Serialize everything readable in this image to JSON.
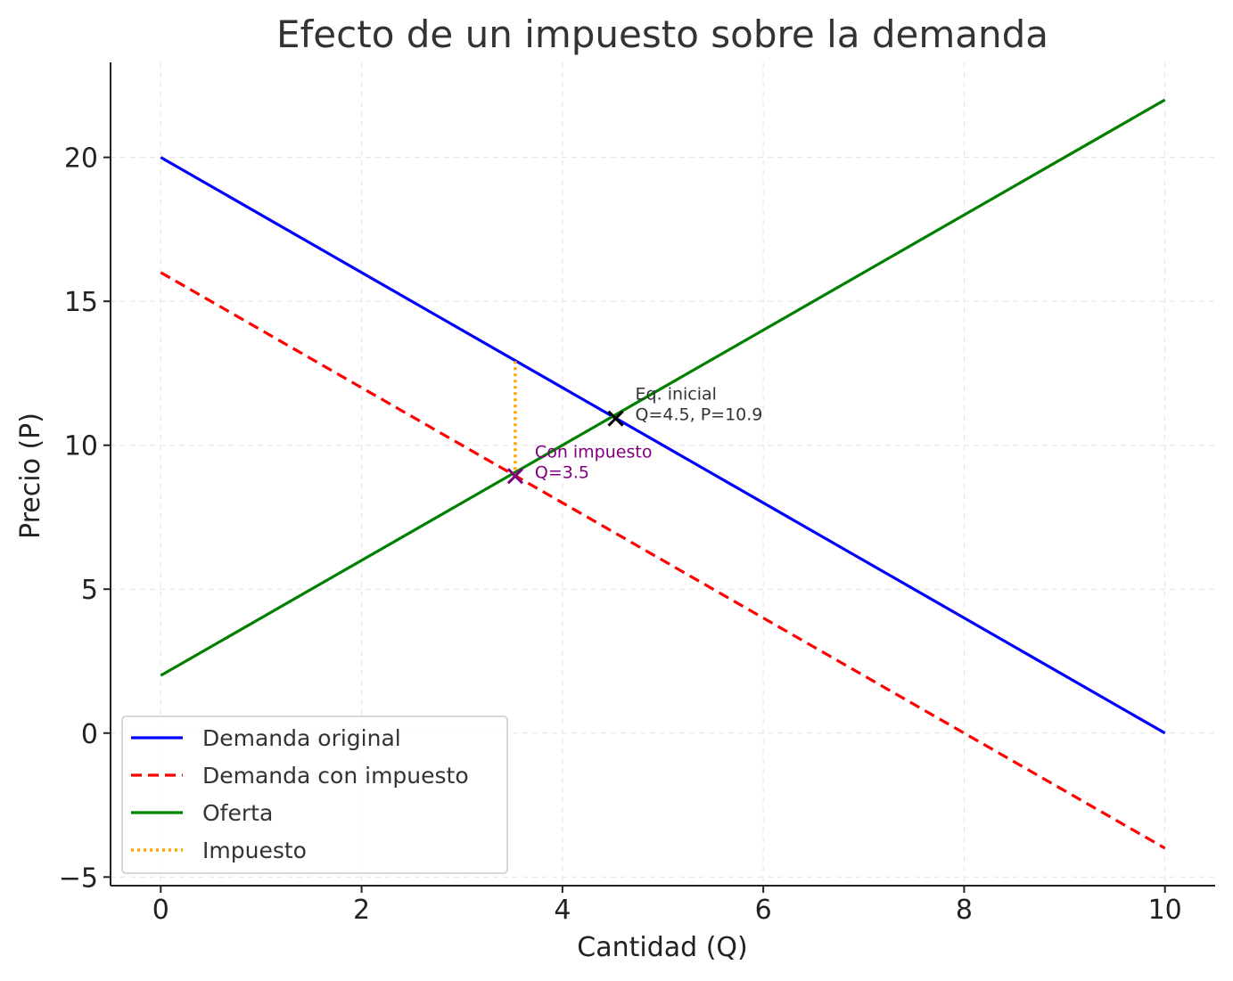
{
  "chart_data": {
    "type": "line",
    "title": "Efecto de un impuesto sobre la demanda",
    "xlabel": "Cantidad (Q)",
    "ylabel": "Precio (P)",
    "xlim": [
      -0.5,
      10.5
    ],
    "ylim": [
      -5.3,
      23.3
    ],
    "xticks": [
      0,
      2,
      4,
      6,
      8,
      10
    ],
    "xtick_labels": [
      "0",
      "2",
      "4",
      "6",
      "8",
      "10"
    ],
    "yticks": [
      -5,
      0,
      5,
      10,
      15,
      20
    ],
    "ytick_labels": [
      "−5",
      "0",
      "5",
      "10",
      "15",
      "20"
    ],
    "grid": true,
    "legend_position": "bottom-left",
    "series": [
      {
        "name": "Demanda original",
        "color": "#0000ff",
        "style": "solid",
        "x": [
          0,
          10
        ],
        "y": [
          20,
          0
        ]
      },
      {
        "name": "Demanda con impuesto",
        "color": "#ff0000",
        "style": "dashed",
        "x": [
          0,
          10
        ],
        "y": [
          16,
          -4
        ]
      },
      {
        "name": "Oferta",
        "color": "#008000",
        "style": "solid",
        "x": [
          0,
          10
        ],
        "y": [
          2,
          22
        ]
      },
      {
        "name": "Impuesto",
        "color": "#ffa500",
        "style": "dotted",
        "x": [
          3.53,
          3.53
        ],
        "y": [
          8.93,
          12.93
        ]
      }
    ],
    "points": [
      {
        "x": 4.53,
        "y": 10.93,
        "color": "#000000",
        "marker": "x",
        "label_lines": [
          "Eq. inicial",
          "Q=4.5, P=10.9"
        ],
        "label_color": "#333333"
      },
      {
        "x": 3.53,
        "y": 8.93,
        "color": "#800080",
        "marker": "x",
        "label_lines": [
          "Con impuesto",
          "Q=3.5"
        ],
        "label_color": "#800080"
      }
    ]
  }
}
